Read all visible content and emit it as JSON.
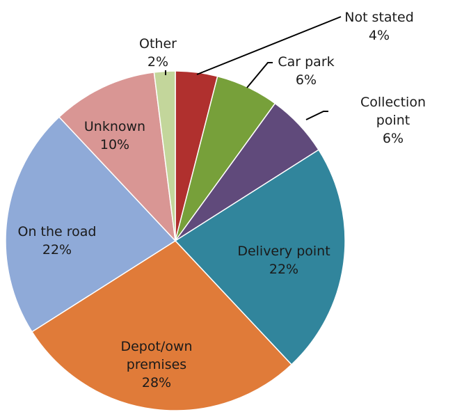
{
  "chart_data": {
    "type": "pie",
    "categories": [
      "Not stated",
      "Car park",
      "Collection point",
      "Delivery point",
      "Depot/own premises",
      "On the road",
      "Unknown",
      "Other"
    ],
    "values": [
      4,
      6,
      6,
      22,
      28,
      22,
      10,
      2
    ],
    "value_labels": [
      "4%",
      "6%",
      "6%",
      "22%",
      "28%",
      "22%",
      "10%",
      "2%"
    ],
    "colors": [
      "#b0302e",
      "#77a03a",
      "#604a7b",
      "#31859c",
      "#e07b39",
      "#8faad8",
      "#d99694",
      "#c3d69b"
    ]
  }
}
